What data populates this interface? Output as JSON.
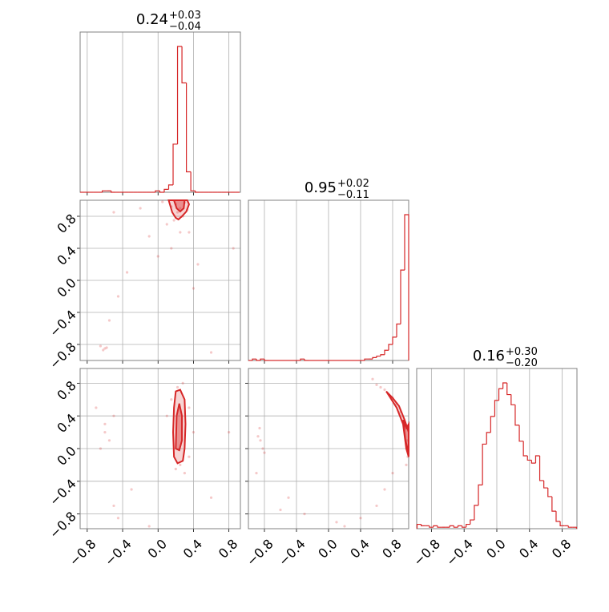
{
  "chart_data": {
    "type": "corner",
    "color": "#d62728",
    "grid": true,
    "axes": [
      {
        "lim": [
          -0.88,
          0.93
        ],
        "ticks": [
          {
            "value": -0.8,
            "label": "−0.8"
          },
          {
            "value": -0.4,
            "label": "−0.4"
          },
          {
            "value": 0.0,
            "label": "0.0"
          },
          0.4,
          0.8
        ]
      },
      {
        "lim": [
          -1.0,
          1.0
        ],
        "ticks": [
          {
            "value": -0.8,
            "label": "−0.8"
          },
          {
            "value": -0.4,
            "label": "−0.4"
          },
          {
            "value": 0.0,
            "label": "0.0"
          },
          0.4,
          0.8
        ]
      },
      {
        "lim": [
          -0.98,
          0.98
        ],
        "ticks": [
          {
            "value": -0.8,
            "label": "−0.8"
          },
          {
            "value": -0.4,
            "label": "−0.4"
          },
          {
            "value": 0.0,
            "label": "0.0"
          },
          0.4,
          0.8
        ]
      }
    ],
    "diagonal": [
      {
        "title": {
          "median": "0.24",
          "plus": "+0.03",
          "minus": "−0.04"
        },
        "bins": [
          -0.88,
          -0.83,
          -0.78,
          -0.73,
          -0.68,
          -0.63,
          -0.58,
          -0.53,
          -0.48,
          -0.43,
          -0.38,
          -0.33,
          -0.28,
          -0.23,
          -0.18,
          -0.13,
          -0.08,
          -0.03,
          0.02,
          0.07,
          0.12,
          0.17,
          0.22,
          0.27,
          0.32,
          0.37,
          0.42,
          0.47,
          0.52,
          0.57,
          0.62,
          0.67,
          0.72,
          0.77,
          0.82,
          0.87,
          0.92
        ],
        "counts": [
          0,
          0,
          0,
          0,
          0,
          1,
          1,
          0,
          0,
          0,
          0,
          0,
          0,
          0,
          0,
          0,
          0,
          1,
          0,
          2,
          5,
          33,
          100,
          75,
          14,
          1,
          0,
          0,
          0,
          0,
          0,
          0,
          0,
          0,
          0,
          0
        ]
      },
      {
        "title": {
          "median": "0.95",
          "plus": "+0.02",
          "minus": "−0.11"
        },
        "bins": [
          -1.0,
          -0.95,
          -0.9,
          -0.85,
          -0.8,
          -0.75,
          -0.7,
          -0.65,
          -0.6,
          -0.55,
          -0.5,
          -0.45,
          -0.4,
          -0.35,
          -0.3,
          -0.25,
          -0.2,
          -0.15,
          -0.1,
          -0.05,
          0.0,
          0.05,
          0.1,
          0.15,
          0.2,
          0.25,
          0.3,
          0.35,
          0.4,
          0.45,
          0.5,
          0.55,
          0.6,
          0.65,
          0.7,
          0.75,
          0.8,
          0.85,
          0.9,
          0.95,
          1.0
        ],
        "counts": [
          0,
          1,
          0,
          1,
          0,
          0,
          0,
          0,
          0,
          0,
          0,
          0,
          0,
          1,
          0,
          0,
          0,
          0,
          0,
          0,
          0,
          0,
          0,
          0,
          0,
          0,
          0,
          0,
          0,
          1,
          1,
          2,
          3,
          4,
          7,
          11,
          16,
          25,
          62,
          100
        ]
      },
      {
        "title": {
          "median": "0.16",
          "plus": "+0.30",
          "minus": "−0.20"
        },
        "bins": [
          -0.975,
          -0.925,
          -0.875,
          -0.825,
          -0.775,
          -0.725,
          -0.675,
          -0.625,
          -0.575,
          -0.525,
          -0.475,
          -0.425,
          -0.375,
          -0.325,
          -0.275,
          -0.225,
          -0.175,
          -0.125,
          -0.075,
          -0.025,
          0.025,
          0.075,
          0.125,
          0.175,
          0.225,
          0.275,
          0.325,
          0.375,
          0.425,
          0.475,
          0.525,
          0.575,
          0.625,
          0.675,
          0.725,
          0.775,
          0.825,
          0.875,
          0.925,
          0.975
        ],
        "counts": [
          3,
          2,
          2,
          1,
          2,
          1,
          1,
          1,
          2,
          1,
          2,
          1,
          3,
          6,
          16,
          30,
          58,
          66,
          77,
          88,
          96,
          100,
          92,
          85,
          71,
          60,
          50,
          47,
          45,
          50,
          33,
          28,
          22,
          12,
          5,
          2,
          2,
          1,
          1
        ]
      }
    ],
    "pairs": [
      {
        "x": [
          0.2,
          0.25,
          0.22,
          0.3,
          0.15,
          0.28,
          0.18,
          0.33,
          0.1,
          0.05,
          0.35,
          -0.1,
          0.0,
          -0.35,
          -0.45,
          -0.55,
          -0.6,
          -0.62,
          -0.58,
          -0.65,
          0.4,
          0.45,
          -0.2,
          0.85,
          -0.5,
          0.6,
          0.25,
          0.15
        ],
        "y": [
          0.95,
          0.9,
          0.85,
          0.97,
          0.92,
          0.8,
          0.75,
          0.88,
          0.7,
          0.98,
          0.6,
          0.55,
          0.3,
          0.1,
          -0.2,
          -0.5,
          -0.85,
          -0.87,
          -0.84,
          -0.82,
          -0.1,
          0.2,
          0.9,
          0.4,
          0.85,
          -0.9,
          0.6,
          0.4
        ],
        "contours": [
          {
            "x": [
              0.12,
              0.16,
              0.2,
              0.23,
              0.27,
              0.32,
              0.35,
              0.33
            ],
            "y": [
              1.0,
              0.85,
              0.78,
              0.76,
              0.8,
              0.86,
              0.95,
              1.0
            ]
          },
          {
            "x": [
              0.18,
              0.21,
              0.25,
              0.29,
              0.3
            ],
            "y": [
              1.0,
              0.9,
              0.86,
              0.9,
              1.0
            ]
          }
        ]
      },
      {
        "x": [
          0.22,
          0.28,
          0.2,
          0.3,
          0.25,
          -0.6,
          -0.55,
          -0.65,
          -0.6,
          -0.7,
          -0.5,
          0.1,
          0.4,
          0.35,
          -0.5,
          -0.45,
          -0.1,
          0.6,
          0.8,
          -0.3,
          0.15,
          0.35
        ],
        "y": [
          0.75,
          0.8,
          -0.25,
          -0.3,
          -0.2,
          0.2,
          0.1,
          0.0,
          0.3,
          0.5,
          0.4,
          0.4,
          0.2,
          -0.1,
          -0.7,
          -0.85,
          -0.95,
          -0.6,
          0.2,
          -0.5,
          0.6,
          0.5
        ],
        "contours": [
          {
            "x": [
              0.18,
              0.17,
              0.18,
              0.2,
              0.25,
              0.3,
              0.31,
              0.3,
              0.28,
              0.22
            ],
            "y": [
              -0.1,
              0.2,
              0.5,
              0.7,
              0.72,
              0.6,
              0.3,
              0.0,
              -0.15,
              -0.18
            ]
          },
          {
            "x": [
              0.2,
              0.21,
              0.24,
              0.27,
              0.27,
              0.24
            ],
            "y": [
              0.0,
              0.4,
              0.55,
              0.4,
              0.1,
              -0.02
            ]
          }
        ]
      },
      {
        "x": [
          0.55,
          0.6,
          0.65,
          0.7,
          0.8,
          0.85,
          0.9,
          0.95,
          0.98,
          0.99,
          0.97,
          -0.85,
          -0.82,
          -0.88,
          -0.8,
          -0.86,
          -0.9,
          -0.5,
          -0.3,
          0.1,
          0.4,
          0.6,
          0.7,
          0.8,
          0.2,
          -0.6
        ],
        "y": [
          0.85,
          0.78,
          0.75,
          0.72,
          0.62,
          0.55,
          0.45,
          0.3,
          0.1,
          -0.1,
          -0.2,
          0.1,
          0.0,
          0.15,
          -0.05,
          0.25,
          -0.3,
          -0.6,
          -0.8,
          -0.9,
          -0.85,
          -0.7,
          -0.5,
          -0.3,
          -0.95,
          -0.75
        ],
        "contours": [
          {
            "x": [
              0.72,
              0.8,
              0.88,
              0.95,
              1.0,
              1.0,
              0.97,
              0.93,
              0.85,
              0.76
            ],
            "y": [
              0.7,
              0.62,
              0.52,
              0.35,
              0.2,
              -0.1,
              0.0,
              0.3,
              0.5,
              0.64
            ]
          },
          {
            "x": [
              0.93,
              0.97,
              1.0,
              1.0,
              0.96
            ],
            "y": [
              0.35,
              0.25,
              0.3,
              -0.05,
              0.1
            ]
          }
        ]
      }
    ]
  }
}
